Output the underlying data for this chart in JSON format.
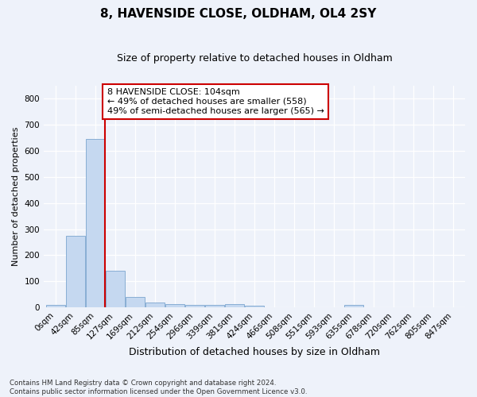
{
  "title": "8, HAVENSIDE CLOSE, OLDHAM, OL4 2SY",
  "subtitle": "Size of property relative to detached houses in Oldham",
  "xlabel": "Distribution of detached houses by size in Oldham",
  "ylabel": "Number of detached properties",
  "bar_color": "#c5d8f0",
  "bar_edge_color": "#88aed4",
  "bin_labels": [
    "0sqm",
    "42sqm",
    "85sqm",
    "127sqm",
    "169sqm",
    "212sqm",
    "254sqm",
    "296sqm",
    "339sqm",
    "381sqm",
    "424sqm",
    "466sqm",
    "508sqm",
    "551sqm",
    "593sqm",
    "635sqm",
    "678sqm",
    "720sqm",
    "762sqm",
    "805sqm",
    "847sqm"
  ],
  "bar_heights": [
    8,
    275,
    645,
    140,
    38,
    18,
    12,
    10,
    8,
    12,
    5,
    0,
    0,
    0,
    0,
    8,
    0,
    0,
    0,
    0,
    0
  ],
  "ylim": [
    0,
    850
  ],
  "yticks": [
    0,
    100,
    200,
    300,
    400,
    500,
    600,
    700,
    800
  ],
  "vline_x": 2.48,
  "vline_color": "#cc0000",
  "annotation_text": "8 HAVENSIDE CLOSE: 104sqm\n← 49% of detached houses are smaller (558)\n49% of semi-detached houses are larger (565) →",
  "annotation_box_color": "#ffffff",
  "annotation_box_edgecolor": "#cc0000",
  "footer_text": "Contains HM Land Registry data © Crown copyright and database right 2024.\nContains public sector information licensed under the Open Government Licence v3.0.",
  "background_color": "#eef2fa",
  "plot_bg_color": "#eef2fa",
  "title_fontsize": 11,
  "subtitle_fontsize": 9,
  "annotation_fontsize": 8,
  "ylabel_fontsize": 8,
  "xlabel_fontsize": 9,
  "tick_fontsize": 7.5
}
